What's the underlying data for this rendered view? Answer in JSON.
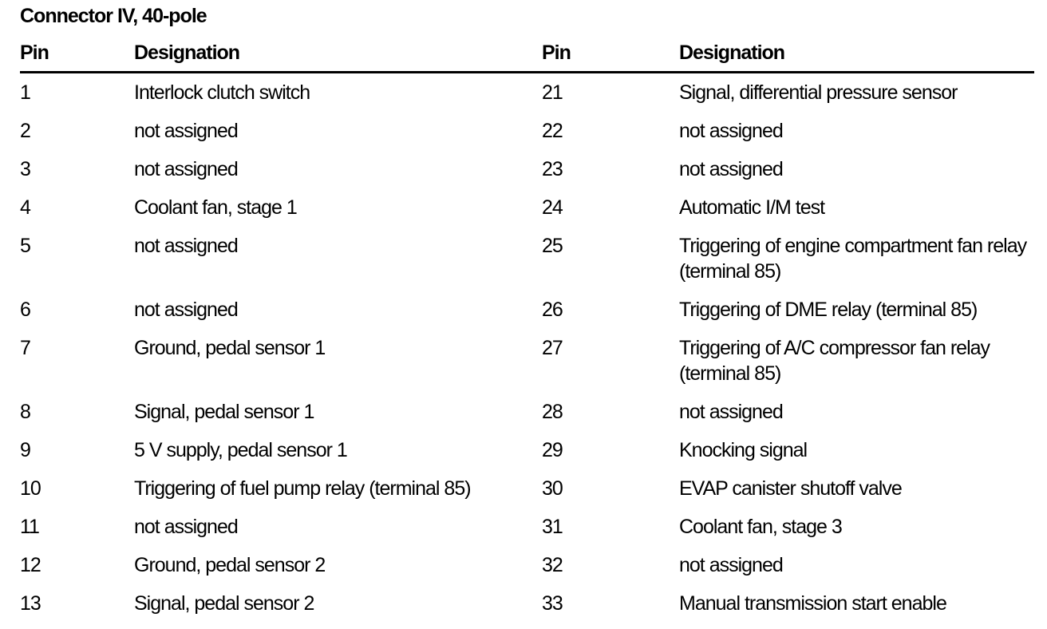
{
  "title": "Connector IV, 40-pole",
  "header": {
    "pin": "Pin",
    "designation": "Designation"
  },
  "colors": {
    "text": "#000000",
    "background": "#ffffff",
    "header_rule": "#000000"
  },
  "rows": [
    {
      "left_pin": "1",
      "left_desc": "Interlock clutch switch",
      "right_pin": "21",
      "right_desc": "Signal, differential pressure sensor"
    },
    {
      "left_pin": "2",
      "left_desc": "not assigned",
      "right_pin": "22",
      "right_desc": "not assigned"
    },
    {
      "left_pin": "3",
      "left_desc": "not assigned",
      "right_pin": "23",
      "right_desc": "not assigned"
    },
    {
      "left_pin": "4",
      "left_desc": "Coolant fan, stage 1",
      "right_pin": "24",
      "right_desc": "Automatic I/M test"
    },
    {
      "left_pin": "5",
      "left_desc": "not assigned",
      "right_pin": "25",
      "right_desc": "Triggering of engine compartment fan relay (terminal 85)"
    },
    {
      "left_pin": "6",
      "left_desc": "not assigned",
      "right_pin": "26",
      "right_desc": "Triggering of DME relay (terminal 85)"
    },
    {
      "left_pin": "7",
      "left_desc": "Ground, pedal sensor 1",
      "right_pin": "27",
      "right_desc": "Triggering of A/C compressor fan relay (terminal 85)"
    },
    {
      "left_pin": "8",
      "left_desc": "Signal, pedal sensor 1",
      "right_pin": "28",
      "right_desc": "not assigned"
    },
    {
      "left_pin": "9",
      "left_desc": "5 V supply, pedal sensor 1",
      "right_pin": "29",
      "right_desc": "Knocking signal"
    },
    {
      "left_pin": "10",
      "left_desc": "Triggering of fuel pump relay (terminal 85)",
      "right_pin": "30",
      "right_desc": "EVAP canister shutoff valve"
    },
    {
      "left_pin": "11",
      "left_desc": "not assigned",
      "right_pin": "31",
      "right_desc": "Coolant fan, stage 3"
    },
    {
      "left_pin": "12",
      "left_desc": "Ground, pedal sensor 2",
      "right_pin": "32",
      "right_desc": "not assigned"
    },
    {
      "left_pin": "13",
      "left_desc": "Signal, pedal sensor 2",
      "right_pin": "33",
      "right_desc": "Manual transmission start enable"
    }
  ]
}
